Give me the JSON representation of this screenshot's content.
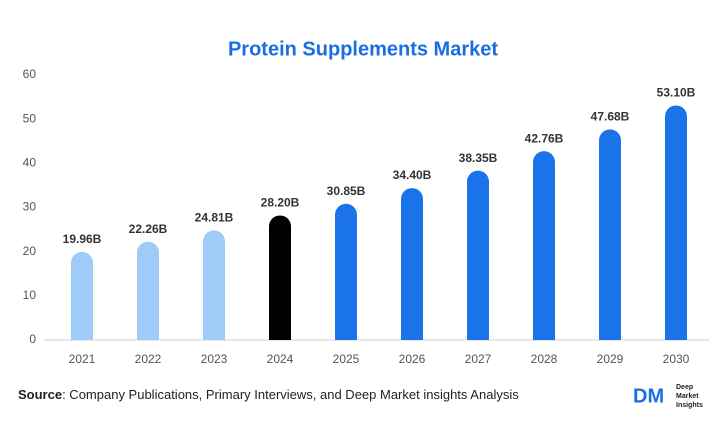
{
  "chart_data": {
    "type": "bar",
    "title": "Protein Supplements Market",
    "categories": [
      "2021",
      "2022",
      "2023",
      "2024",
      "2025",
      "2026",
      "2027",
      "2028",
      "2029",
      "2030"
    ],
    "values": [
      19.96,
      22.26,
      24.81,
      28.2,
      30.85,
      34.4,
      38.35,
      42.76,
      47.68,
      53.1
    ],
    "value_labels": [
      "19.96B",
      "22.26B",
      "24.81B",
      "28.20B",
      "30.85B",
      "34.40B",
      "38.35B",
      "42.76B",
      "47.68B",
      "53.10B"
    ],
    "colors": [
      "#9fcbf8",
      "#9fcbf8",
      "#9fcbf8",
      "#000000",
      "#1a73e8",
      "#1a73e8",
      "#1a73e8",
      "#1a73e8",
      "#1a73e8",
      "#1a73e8"
    ],
    "ylim": [
      0,
      60
    ],
    "yticks": [
      0,
      10,
      20,
      30,
      40,
      50,
      60
    ],
    "grid": false
  },
  "footer": {
    "source_label": "Source",
    "source_text": ": Company Publications, Primary Interviews, and Deep Market insights Analysis",
    "logo": {
      "mark": "DM",
      "lines": [
        "Deep",
        "Market",
        "Insights"
      ]
    }
  }
}
